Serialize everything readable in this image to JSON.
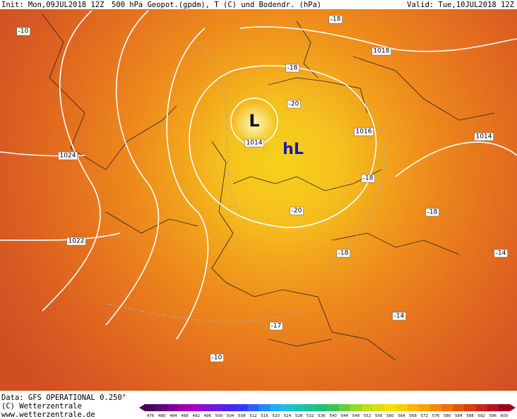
{
  "header": {
    "init": "Init: Mon,09JUL2018 12Z",
    "title": "500 hPa Geopot.(gpdm), T (C) und Bodendr. (hPa)",
    "valid": "Valid: Tue,10JUL2018 12Z"
  },
  "pressure_centers": [
    "L",
    "hL"
  ],
  "isobar_labels": [
    "1018",
    "1016",
    "1014",
    "1014",
    "1024",
    "1022"
  ],
  "temperature_labels": [
    "-10",
    "-18",
    "-18",
    "-20",
    "-18",
    "-20",
    "-18",
    "-18",
    "-14",
    "-17",
    "-14",
    "-10"
  ],
  "footer": {
    "data": "Data: GFS OPERATIONAL 0.250°",
    "copyright": "(C) Wetterzentrale",
    "url": "www.wetterzentrale.de"
  },
  "colorbar": {
    "ticks": [
      476,
      480,
      484,
      488,
      492,
      496,
      500,
      504,
      508,
      512,
      516,
      520,
      524,
      528,
      532,
      536,
      540,
      544,
      548,
      552,
      556,
      560,
      564,
      568,
      572,
      576,
      580,
      584,
      588,
      592,
      596,
      600
    ]
  }
}
